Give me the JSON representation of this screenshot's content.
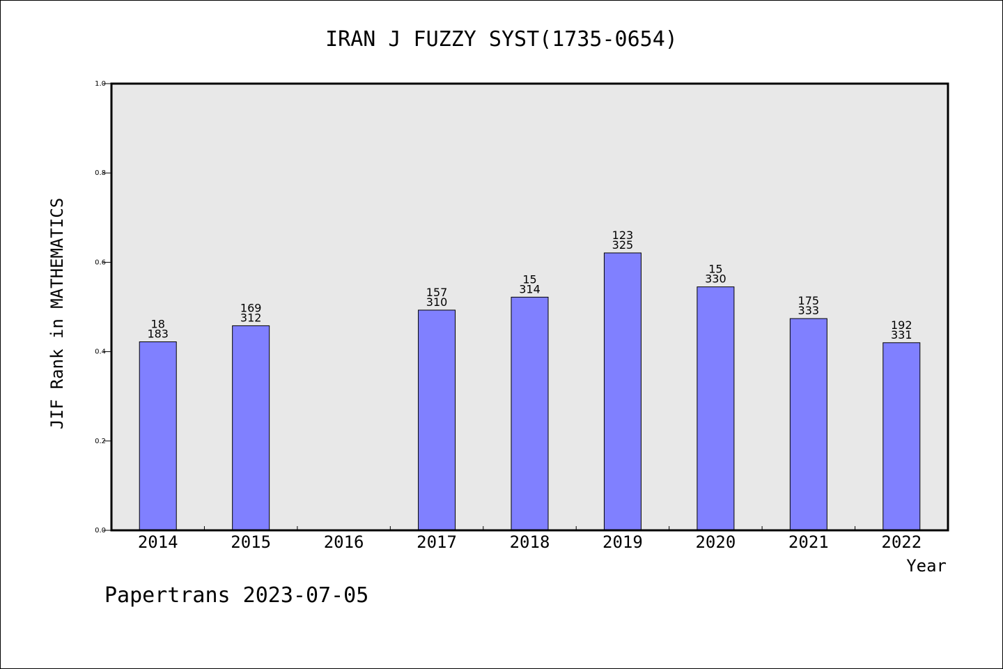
{
  "chart_data": {
    "type": "bar",
    "title": "IRAN J FUZZY SYST(1735-0654)",
    "xlabel": "Year",
    "ylabel": "JIF Rank in MATHEMATICS",
    "ylim": [
      0,
      1.0
    ],
    "yticks": [
      "0.0",
      "0.2",
      "0.4",
      "0.6",
      "0.8",
      "1.0"
    ],
    "categories": [
      "2014",
      "2015",
      "2016",
      "2017",
      "2018",
      "2019",
      "2020",
      "2021",
      "2022"
    ],
    "values": [
      0.422,
      0.458,
      null,
      0.493,
      0.522,
      0.621,
      0.545,
      0.474,
      0.42
    ],
    "rank_labels": [
      "18",
      "169",
      "",
      "157",
      "15",
      "123",
      "15",
      "175",
      "192"
    ],
    "total_labels": [
      "183",
      "312",
      "",
      "310",
      "314",
      "325",
      "330",
      "333",
      "331"
    ],
    "colors": {
      "bar": "#8080ff",
      "plot_bg": "#e8e8e8"
    },
    "grid": false
  },
  "footer": "Papertrans 2023-07-05"
}
